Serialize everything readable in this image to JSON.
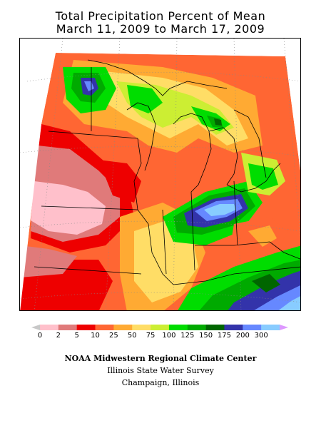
{
  "title_line1": "Total Precipitation Percent of Mean",
  "title_line2": "March 11, 2009 to March 17, 2009",
  "legend": {
    "colors": [
      "#c8c8c8",
      "#ffc0cb",
      "#e07a7a",
      "#ee0000",
      "#ff6633",
      "#ffaa33",
      "#ffdd66",
      "#ccee33",
      "#00dd00",
      "#00aa00",
      "#006600",
      "#3333aa",
      "#6688ff",
      "#88ccff",
      "#dd99ff"
    ],
    "labels": [
      "0",
      "2",
      "5",
      "10",
      "25",
      "50",
      "75",
      "100",
      "125",
      "150",
      "175",
      "200",
      "300"
    ]
  },
  "credits": {
    "line1": "NOAA Midwestern Regional Climate Center",
    "line2": "Illinois State Water Survey",
    "line3": "Champaign, Illinois"
  }
}
